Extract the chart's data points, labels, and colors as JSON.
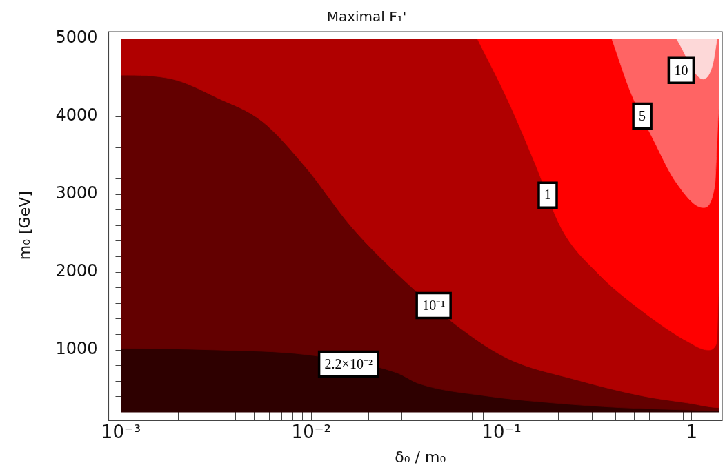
{
  "chart_data": {
    "type": "area",
    "title": "Maximal F₁'",
    "xlabel": "δ₀ / m₀",
    "ylabel": "m₀ [GeV]",
    "log": "x",
    "xlim": [
      0.001,
      1.4
    ],
    "ylim": [
      200,
      5000
    ],
    "xticks": [
      {
        "value": 0.001,
        "label": "10⁻³"
      },
      {
        "value": 0.002,
        "label": null
      },
      {
        "value": 0.003,
        "label": null
      },
      {
        "value": 0.004,
        "label": null
      },
      {
        "value": 0.005,
        "label": null
      },
      {
        "value": 0.006,
        "label": null
      },
      {
        "value": 0.007,
        "label": null
      },
      {
        "value": 0.008,
        "label": null
      },
      {
        "value": 0.009,
        "label": null
      },
      {
        "value": 0.01,
        "label": "10⁻²"
      },
      {
        "value": 0.02,
        "label": null
      },
      {
        "value": 0.03,
        "label": null
      },
      {
        "value": 0.04,
        "label": null
      },
      {
        "value": 0.05,
        "label": null
      },
      {
        "value": 0.06,
        "label": null
      },
      {
        "value": 0.07,
        "label": null
      },
      {
        "value": 0.08,
        "label": null
      },
      {
        "value": 0.09,
        "label": null
      },
      {
        "value": 0.1,
        "label": "10⁻¹"
      },
      {
        "value": 0.2,
        "label": null
      },
      {
        "value": 0.3,
        "label": null
      },
      {
        "value": 0.4,
        "label": null
      },
      {
        "value": 0.5,
        "label": null
      },
      {
        "value": 0.6,
        "label": null
      },
      {
        "value": 0.7,
        "label": null
      },
      {
        "value": 0.8,
        "label": null
      },
      {
        "value": 0.9,
        "label": null
      },
      {
        "value": 1,
        "label": "1"
      }
    ],
    "yticks": [
      {
        "value": 400,
        "label": null
      },
      {
        "value": 600,
        "label": null
      },
      {
        "value": 800,
        "label": null
      },
      1000,
      {
        "value": 1200,
        "label": null
      },
      {
        "value": 1400,
        "label": null
      },
      {
        "value": 1600,
        "label": null
      },
      {
        "value": 1800,
        "label": null
      },
      2000,
      {
        "value": 2200,
        "label": null
      },
      {
        "value": 2400,
        "label": null
      },
      {
        "value": 2600,
        "label": null
      },
      {
        "value": 2800,
        "label": null
      },
      3000,
      {
        "value": 3200,
        "label": null
      },
      {
        "value": 3400,
        "label": null
      },
      {
        "value": 3600,
        "label": null
      },
      {
        "value": 3800,
        "label": null
      },
      4000,
      {
        "value": 4200,
        "label": null
      },
      {
        "value": 4400,
        "label": null
      },
      {
        "value": 4600,
        "label": null
      },
      {
        "value": 4800,
        "label": null
      },
      5000
    ],
    "grid": false,
    "legend": false,
    "bands": [
      {
        "axis": "y",
        "from": 200,
        "to": 5000,
        "color": "#2e0000"
      }
    ],
    "series": [
      {
        "color": "#630000",
        "x": [
          0.001,
          0.001,
          0.0032,
          0.0094,
          0.028,
          0.0366,
          0.083,
          0.186,
          0.42,
          0.95,
          1.4,
          1.4
        ],
        "values": [
          5000,
          1020,
          1000,
          940,
          710,
          570,
          410,
          320,
          260,
          230,
          220,
          5000
        ]
      },
      {
        "color": "#b00000",
        "x": [
          0.001,
          0.001,
          0.00186,
          0.0032,
          0.0055,
          0.0094,
          0.0163,
          0.0319,
          0.06,
          0.108,
          0.245,
          0.55,
          0.95,
          1.4,
          1.4
        ],
        "values": [
          5000,
          4530,
          4480,
          4240,
          3940,
          3340,
          2580,
          1860,
          1290,
          890,
          620,
          410,
          320,
          260,
          5000
        ]
      },
      {
        "color": "#ff0000",
        "x": [
          0.0746,
          0.108,
          0.15,
          0.207,
          0.323,
          0.55,
          0.95,
          1.22,
          1.35,
          1.4,
          1.4
        ],
        "values": [
          5000,
          4210,
          3400,
          2560,
          1980,
          1500,
          1110,
          1000,
          1080,
          2000,
          5000
        ]
      },
      {
        "color": "#ff6464",
        "x": [
          0.38,
          0.48,
          0.63,
          0.83,
          1.15,
          1.32,
          1.4,
          1.4
        ],
        "values": [
          5000,
          4300,
          3700,
          3150,
          2830,
          3100,
          4150,
          5000
        ]
      },
      {
        "color": "#fdd8d8",
        "x": [
          0.83,
          0.98,
          1.15,
          1.29,
          1.36
        ],
        "values": [
          5000,
          null,
          4480,
          4670,
          5000
        ]
      }
    ],
    "annotations": [
      {
        "text": "2.2×10⁻²",
        "x": 0.0157,
        "y": 819
      },
      {
        "text": "10⁻¹",
        "x": 0.044,
        "y": 1570
      },
      {
        "text": "1",
        "x": 0.175,
        "y": 2990
      },
      {
        "text": "5",
        "x": 0.55,
        "y": 4005
      },
      {
        "text": "10",
        "x": 0.88,
        "y": 4590
      }
    ]
  }
}
